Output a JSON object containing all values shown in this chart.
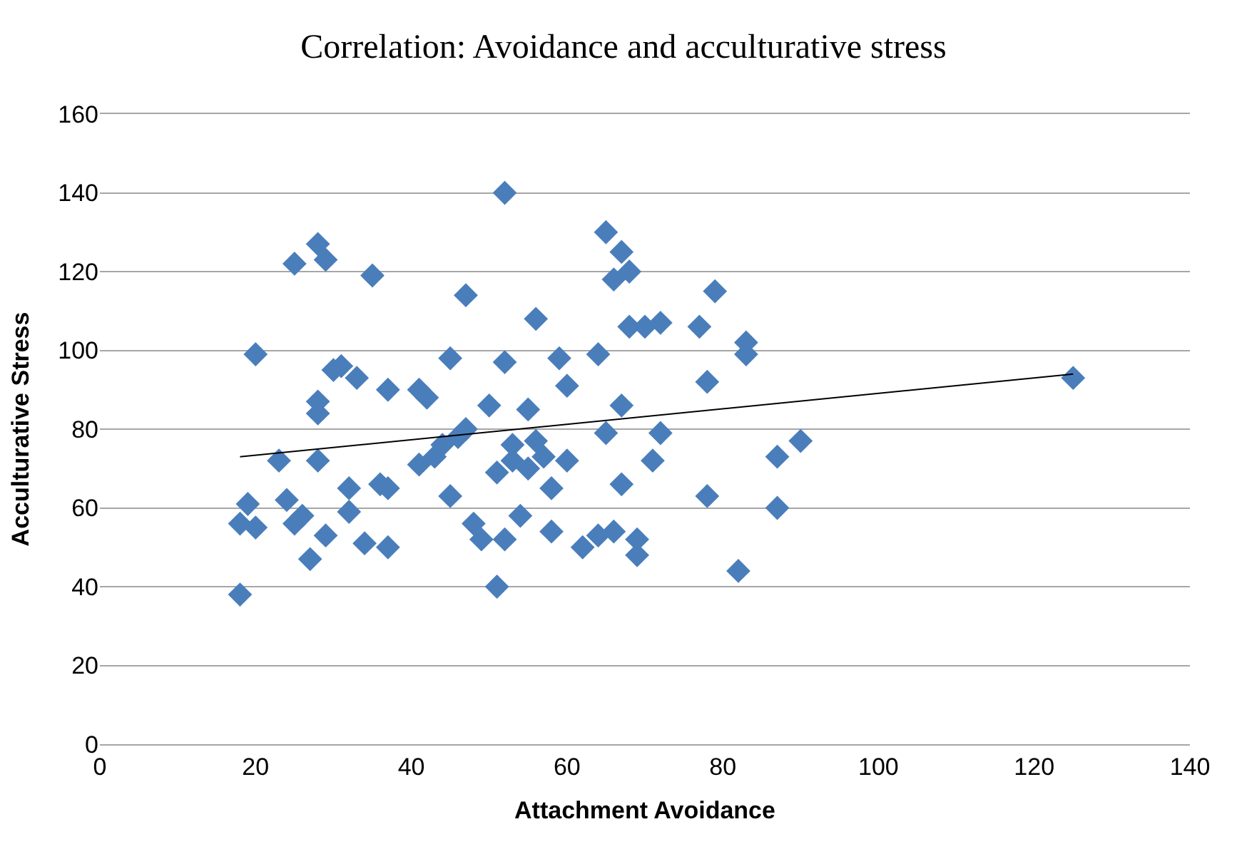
{
  "chart_data": {
    "type": "scatter",
    "title": "Correlation: Avoidance and acculturative stress",
    "xlabel": "Attachment Avoidance",
    "ylabel": "Acculturative Stress",
    "xlim": [
      0,
      140
    ],
    "xticks": [
      0,
      20,
      40,
      60,
      80,
      100,
      120,
      140
    ],
    "ylim": [
      0,
      160
    ],
    "yticks": [
      0,
      20,
      40,
      60,
      80,
      100,
      120,
      140,
      160
    ],
    "grid": "y",
    "marker": "diamond",
    "series": [
      {
        "color": "#4a7ebb",
        "x": [
          18,
          18,
          19,
          20,
          20,
          23,
          24,
          25,
          25,
          26,
          27,
          28,
          28,
          28,
          28,
          29,
          29,
          30,
          31,
          32,
          32,
          33,
          34,
          35,
          36,
          37,
          37,
          37,
          41,
          41,
          42,
          43,
          44,
          45,
          45,
          46,
          47,
          47,
          48,
          49,
          50,
          51,
          51,
          52,
          52,
          52,
          53,
          53,
          54,
          55,
          55,
          56,
          56,
          57,
          58,
          58,
          59,
          60,
          60,
          62,
          64,
          64,
          65,
          65,
          66,
          66,
          67,
          67,
          67,
          68,
          68,
          69,
          69,
          70,
          71,
          72,
          72,
          77,
          78,
          78,
          79,
          82,
          83,
          83,
          87,
          87,
          90,
          125
        ],
        "values": [
          38,
          56,
          61,
          55,
          99,
          72,
          62,
          122,
          56,
          58,
          47,
          127,
          87,
          84,
          72,
          123,
          53,
          95,
          96,
          65,
          59,
          93,
          51,
          119,
          66,
          90,
          65,
          50,
          71,
          90,
          88,
          73,
          76,
          98,
          63,
          78,
          114,
          80,
          56,
          52,
          86,
          69,
          40,
          140,
          97,
          52,
          76,
          72,
          58,
          85,
          70,
          108,
          77,
          73,
          65,
          54,
          98,
          91,
          72,
          50,
          99,
          53,
          130,
          79,
          118,
          54,
          125,
          86,
          66,
          120,
          106,
          52,
          48,
          106,
          72,
          107,
          79,
          106,
          92,
          63,
          115,
          44,
          102,
          99,
          73,
          60,
          77,
          93
        ]
      },
      {
        "type": "line",
        "color": "#000000",
        "x": [
          18,
          125
        ],
        "values": [
          73,
          94
        ],
        "marker": "none",
        "line_style": "solid"
      }
    ]
  }
}
